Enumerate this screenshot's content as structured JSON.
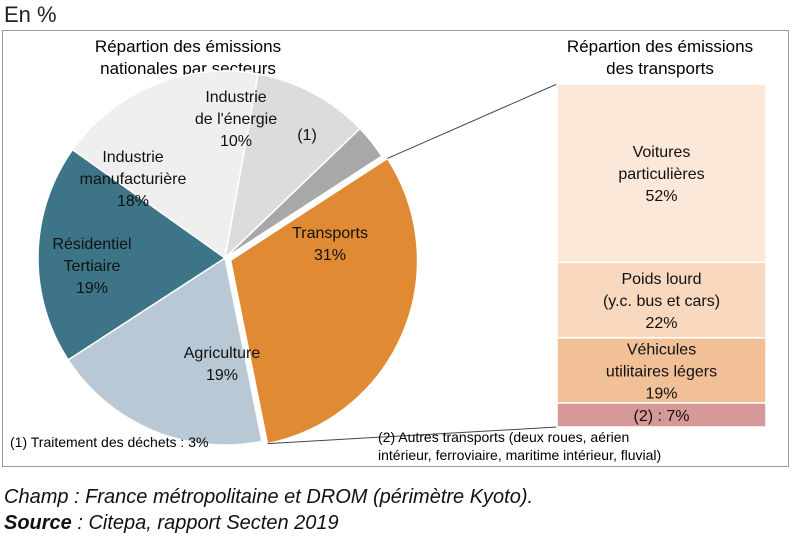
{
  "unit_label": "En %",
  "chart_data": [
    {
      "type": "pie",
      "title": "Répartion des émissions nationales par secteurs",
      "title_lines": [
        "Répartion des émissions",
        "nationales par secteurs"
      ],
      "slices": [
        {
          "label": "Transports",
          "label_lines": [
            "Transports"
          ],
          "value": 31,
          "value_text": "31%",
          "color": "#E08A33"
        },
        {
          "label": "Agriculture",
          "label_lines": [
            "Agriculture"
          ],
          "value": 19,
          "value_text": "19%",
          "color": "#B8C8D4"
        },
        {
          "label": "Résidentiel Tertiaire",
          "label_lines": [
            "Résidentiel",
            "Tertiaire"
          ],
          "value": 19,
          "value_text": "19%",
          "color": "#3D7488"
        },
        {
          "label": "Industrie manufacturière",
          "label_lines": [
            "Industrie",
            "manufacturière"
          ],
          "value": 18,
          "value_text": "18%",
          "color": "#EFEFEF"
        },
        {
          "label": "Industrie de l'énergie",
          "label_lines": [
            "Industrie",
            "de l'énergie"
          ],
          "value": 10,
          "value_text": "10%",
          "color": "#DCDCDC"
        },
        {
          "label": "(1)",
          "label_lines": [
            "(1)"
          ],
          "value": 3,
          "value_text": "",
          "color": "#A8A8A8"
        }
      ],
      "footnote": "(1) Traitement des déchets : 3%"
    },
    {
      "type": "bar",
      "stacked": true,
      "title": "Répartion des émissions des transports",
      "title_lines": [
        "Répartion des émissions",
        "des transports"
      ],
      "segments": [
        {
          "label": "Voitures particulières",
          "label_lines": [
            "Voitures",
            "particulières"
          ],
          "value": 52,
          "value_text": "52%",
          "color": "#FBE8D9"
        },
        {
          "label": "Poids lourd (y.c. bus et cars)",
          "label_lines": [
            "Poids lourd",
            "(y.c. bus et cars)"
          ],
          "value": 22,
          "value_text": "22%",
          "color": "#F8D8BF"
        },
        {
          "label": "Véhicules utilitaires légers",
          "label_lines": [
            "Véhicules",
            "utilitaires légers"
          ],
          "value": 19,
          "value_text": "19%",
          "color": "#F1C096"
        },
        {
          "label": "(2)",
          "label_lines": [],
          "value": 7,
          "value_text": "(2) : 7%",
          "color": "#D79898"
        }
      ],
      "footnote_lines": [
        "(2) Autres transports (deux roues, aérien",
        "intérieur, ferroviaire, maritime intérieur, fluvial)"
      ]
    }
  ],
  "footer": {
    "champ": "Champ : France métropolitaine et DROM (périmètre Kyoto).",
    "source_label": "Source",
    "source_text": " : Citepa, rapport Secten 2019"
  }
}
